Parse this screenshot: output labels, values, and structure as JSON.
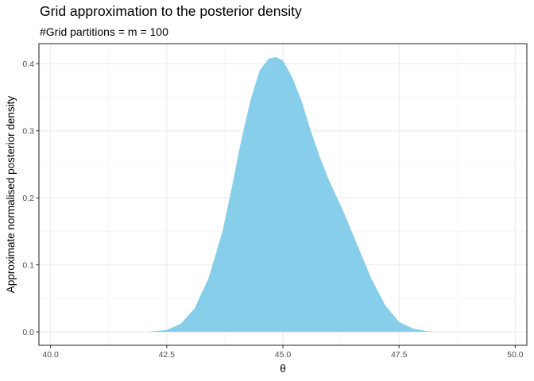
{
  "chart_data": {
    "type": "area",
    "title": "Grid approximation to the posterior density",
    "subtitle": "#Grid partitions = m = 100",
    "xlabel": "θ",
    "ylabel": "Approximate normalised posterior density",
    "xlim": [
      39.75,
      50.25
    ],
    "ylim": [
      -0.02,
      0.43
    ],
    "x_ticks": [
      40.0,
      42.5,
      45.0,
      47.5,
      50.0
    ],
    "x_tick_labels": [
      "40.0",
      "42.5",
      "45.0",
      "47.5",
      "50.0"
    ],
    "y_ticks": [
      0.0,
      0.1,
      0.2,
      0.3,
      0.4
    ],
    "y_tick_labels": [
      "0.0",
      "0.1",
      "0.2",
      "0.3",
      "0.4"
    ],
    "grid": true,
    "fill_color": "#87ceeb",
    "x": [
      42.1,
      42.5,
      42.8,
      43.1,
      43.4,
      43.7,
      43.9,
      44.1,
      44.3,
      44.5,
      44.7,
      44.85,
      45.0,
      45.2,
      45.4,
      45.6,
      45.8,
      46.0,
      46.3,
      46.6,
      46.9,
      47.2,
      47.5,
      47.8,
      48.1,
      48.3
    ],
    "y": [
      0.0,
      0.003,
      0.012,
      0.035,
      0.08,
      0.15,
      0.215,
      0.285,
      0.345,
      0.39,
      0.408,
      0.41,
      0.405,
      0.38,
      0.345,
      0.3,
      0.26,
      0.225,
      0.18,
      0.13,
      0.08,
      0.04,
      0.015,
      0.005,
      0.001,
      0.0
    ]
  }
}
